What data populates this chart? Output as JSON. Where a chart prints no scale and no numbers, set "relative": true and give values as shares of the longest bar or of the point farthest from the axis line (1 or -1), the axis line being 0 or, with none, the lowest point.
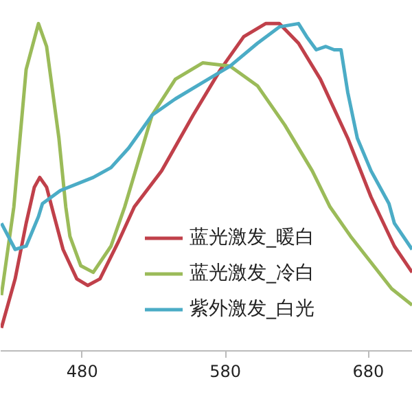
{
  "chart_data": {
    "type": "line",
    "relative": true,
    "xlim": [
      423,
      711
    ],
    "xticks": [
      480,
      580,
      680
    ],
    "grid": false,
    "legend": "bottom right",
    "line_style": "solid",
    "marker": "none",
    "series": [
      {
        "name": "蓝光激发_暖白",
        "color": "#c0404a",
        "x": [
          423.5,
          433.1,
          440.8,
          446.5,
          450.3,
          455.1,
          459.9,
          466.6,
          476.2,
          483.8,
          492.4,
          504.9,
          516.4,
          535.5,
          557.5,
          576.7,
          592.9,
          608.2,
          617.8,
          631.2,
          646.5,
          665.6,
          681.9,
          698.2,
          710.6
        ],
        "values": [
          0.07,
          0.22,
          0.39,
          0.5,
          0.53,
          0.5,
          0.42,
          0.31,
          0.22,
          0.2,
          0.22,
          0.33,
          0.44,
          0.55,
          0.72,
          0.86,
          0.96,
          1.0,
          1.0,
          0.94,
          0.83,
          0.65,
          0.47,
          0.32,
          0.24
        ]
      },
      {
        "name": "蓝光激发_冷白",
        "color": "#9bbb59",
        "x": [
          423.5,
          432.2,
          440.8,
          449.4,
          455.1,
          463.7,
          468.5,
          471.4,
          479.0,
          487.7,
          500.1,
          509.7,
          528.8,
          545.1,
          564.2,
          583.3,
          602.5,
          621.6,
          640.8,
          653.2,
          667.6,
          681.9,
          696.3,
          710.6
        ],
        "values": [
          0.17,
          0.44,
          0.86,
          1.0,
          0.93,
          0.65,
          0.44,
          0.35,
          0.26,
          0.24,
          0.32,
          0.44,
          0.72,
          0.83,
          0.88,
          0.87,
          0.81,
          0.69,
          0.55,
          0.44,
          0.35,
          0.27,
          0.19,
          0.14
        ]
      },
      {
        "name": "紫外激发_白光",
        "color": "#4bacc6",
        "x": [
          423.5,
          433.1,
          440.8,
          449.4,
          452.2,
          464.7,
          487.7,
          500.1,
          512.5,
          528.8,
          545.1,
          564.2,
          583.3,
          602.5,
          617.8,
          631.2,
          636.9,
          643.6,
          650.3,
          656.1,
          660.9,
          665.6,
          672.3,
          681.9,
          694.4,
          698.2,
          710.6
        ],
        "values": [
          0.39,
          0.31,
          0.32,
          0.41,
          0.45,
          0.49,
          0.53,
          0.56,
          0.62,
          0.72,
          0.77,
          0.82,
          0.87,
          0.94,
          0.99,
          1.0,
          0.96,
          0.92,
          0.93,
          0.92,
          0.92,
          0.79,
          0.65,
          0.55,
          0.45,
          0.39,
          0.31
        ]
      }
    ]
  }
}
